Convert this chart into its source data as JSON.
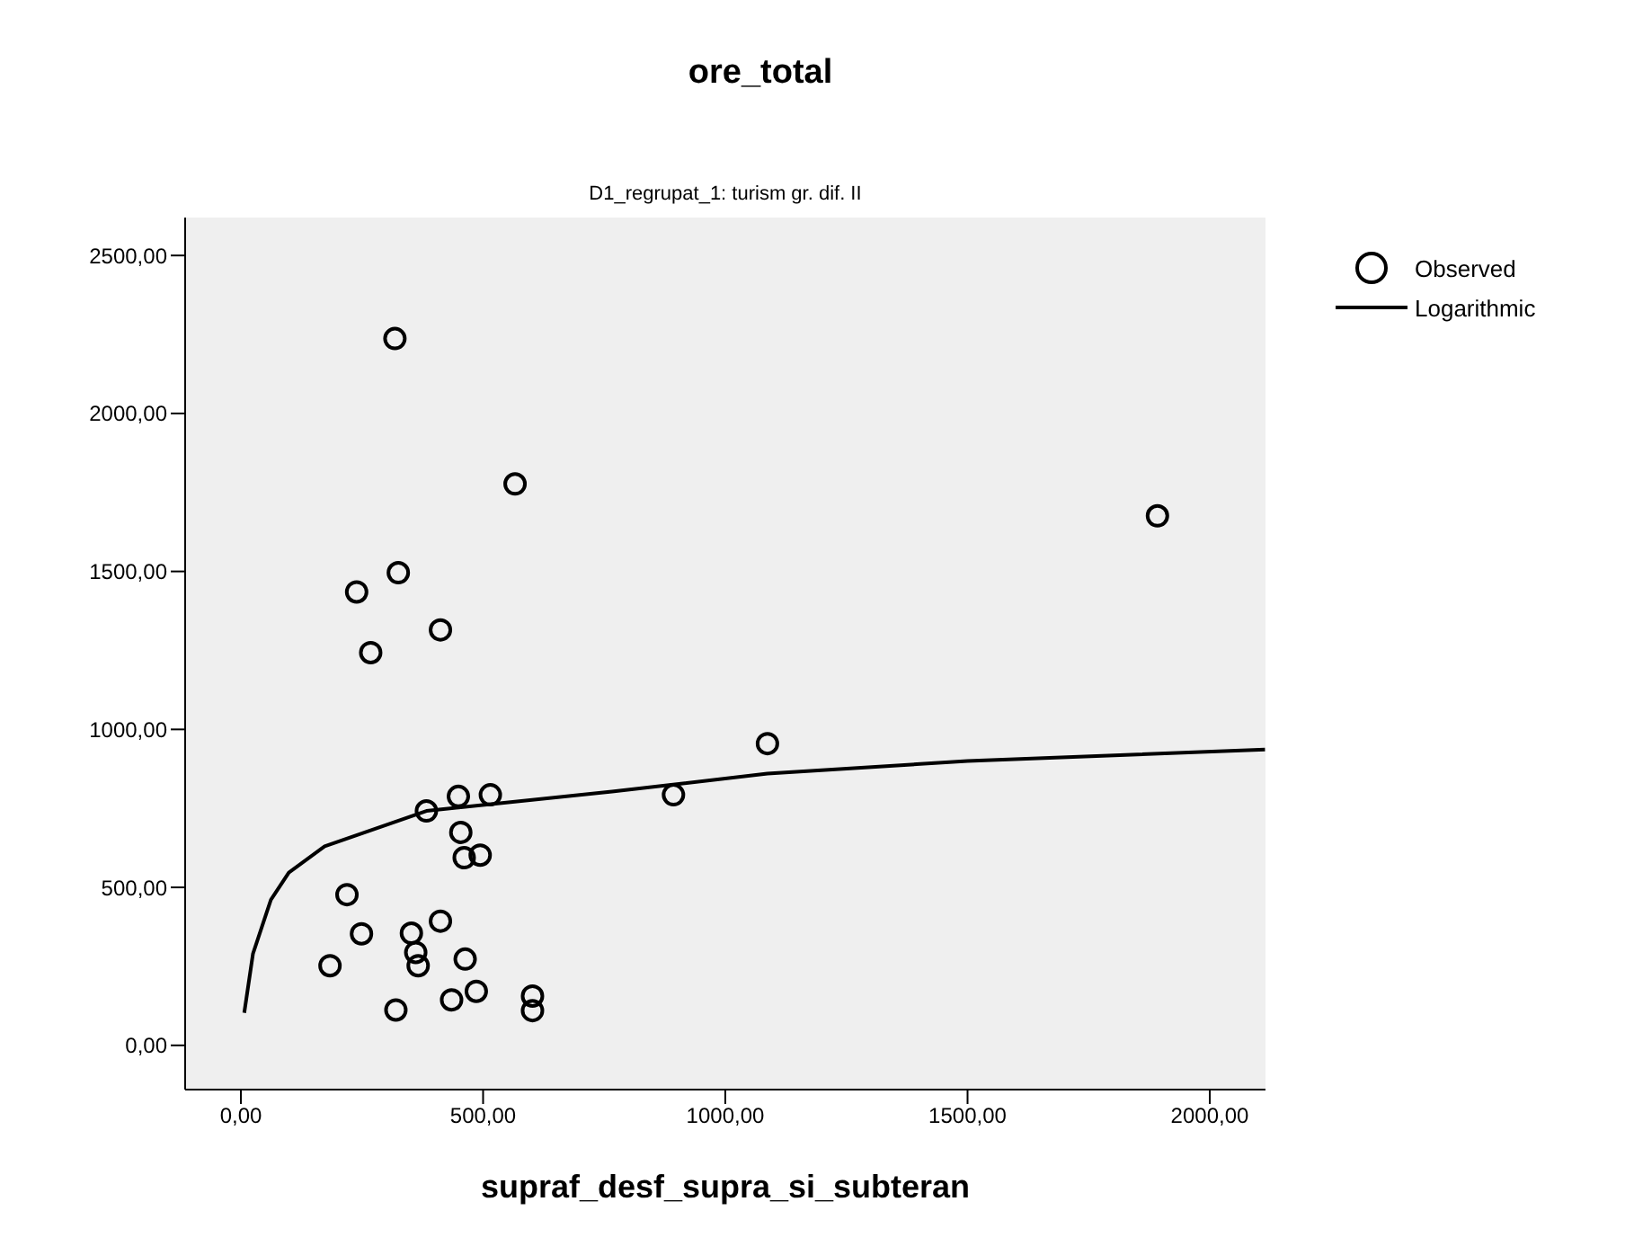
{
  "chart_data": {
    "type": "scatter",
    "title": "ore_total",
    "subtitle": "D1_regrupat_1: turism gr. dif. II",
    "xlabel": "supraf_desf_supra_si_subteran",
    "series": [
      {
        "name": "Observed",
        "color": "#000000",
        "marker": "circle",
        "x": [
          318,
          566,
          325,
          239,
          412,
          268,
          383,
          449,
          515,
          454,
          461,
          494,
          219,
          249,
          352,
          412,
          184,
          361,
          366,
          463,
          486,
          435,
          320,
          602,
          602,
          1892,
          1087,
          893
        ],
        "values": [
          2237,
          1777,
          1496,
          1435,
          1315,
          1243,
          742,
          788,
          793,
          674,
          594,
          602,
          477,
          353,
          355,
          393,
          252,
          294,
          252,
          273,
          171,
          144,
          112,
          156,
          110,
          1676,
          955,
          793
        ]
      },
      {
        "name": "Logarithmic",
        "type": "line",
        "color": "#000000",
        "line_style": "solid",
        "x": [
          7,
          25,
          62,
          99,
          173,
          383,
          766,
          1087,
          1500,
          2114
        ],
        "values": [
          103,
          290,
          461,
          547,
          630,
          742,
          803,
          860,
          900,
          936
        ]
      }
    ],
    "xlim": [
      -115,
      2115
    ],
    "ylim": [
      -140,
      2620
    ],
    "xticks": [
      {
        "value": 0,
        "label": "0,00"
      },
      {
        "value": 500,
        "label": "500,00"
      },
      {
        "value": 1000,
        "label": "1000,00"
      },
      {
        "value": 1500,
        "label": "1500,00"
      },
      {
        "value": 2000,
        "label": "2000,00"
      }
    ],
    "yticks": [
      {
        "value": 0,
        "label": "0,00"
      },
      {
        "value": 500,
        "label": "500,00"
      },
      {
        "value": 1000,
        "label": "1000,00"
      },
      {
        "value": 1500,
        "label": "1500,00"
      },
      {
        "value": 2000,
        "label": "2000,00"
      },
      {
        "value": 2500,
        "label": "2500,00"
      }
    ],
    "grid": false,
    "legend": "right"
  }
}
